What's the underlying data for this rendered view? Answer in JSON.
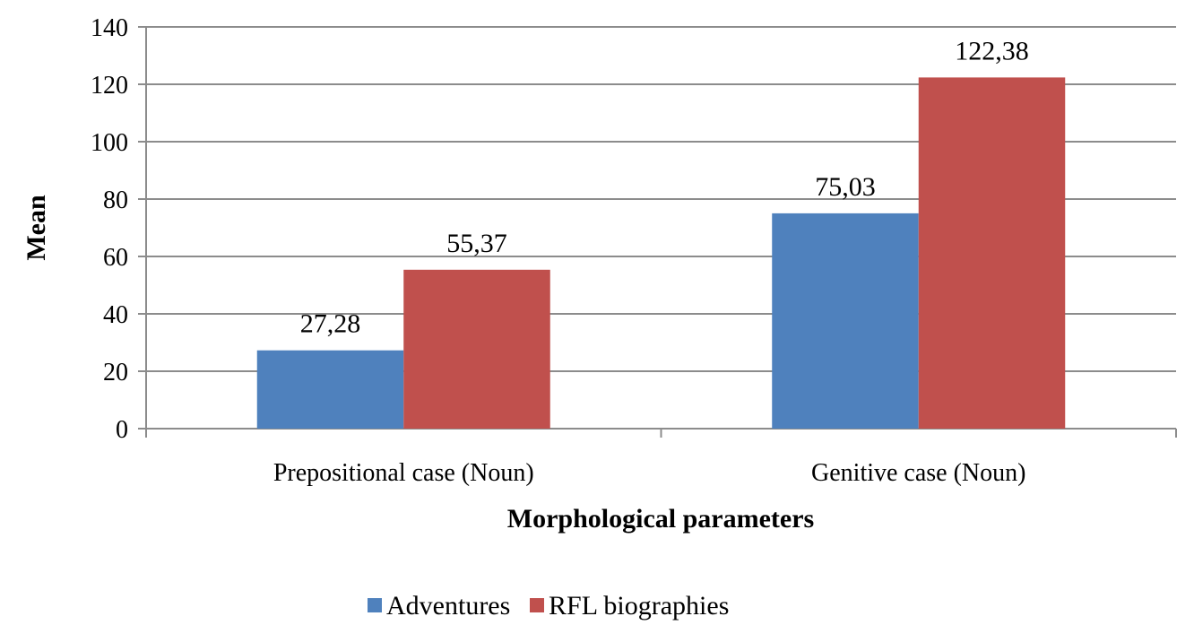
{
  "chart_data": {
    "type": "bar",
    "title": "",
    "xlabel": "Morphological parameters",
    "ylabel": "Mean",
    "ylim": [
      0,
      140
    ],
    "yticks": [
      0,
      20,
      40,
      60,
      80,
      100,
      120,
      140
    ],
    "grid": true,
    "legend_position": "bottom",
    "categories": [
      "Prepositional case (Noun)",
      "Genitive case (Noun)"
    ],
    "series": [
      {
        "name": "Adventures",
        "color": "#4F81BD",
        "values": [
          27.28,
          75.03
        ],
        "labels": [
          "27,28",
          "75,03"
        ]
      },
      {
        "name": "RFL biographies",
        "color": "#C0504D",
        "values": [
          55.37,
          122.38
        ],
        "labels": [
          "55,37",
          "122,38"
        ]
      }
    ]
  }
}
